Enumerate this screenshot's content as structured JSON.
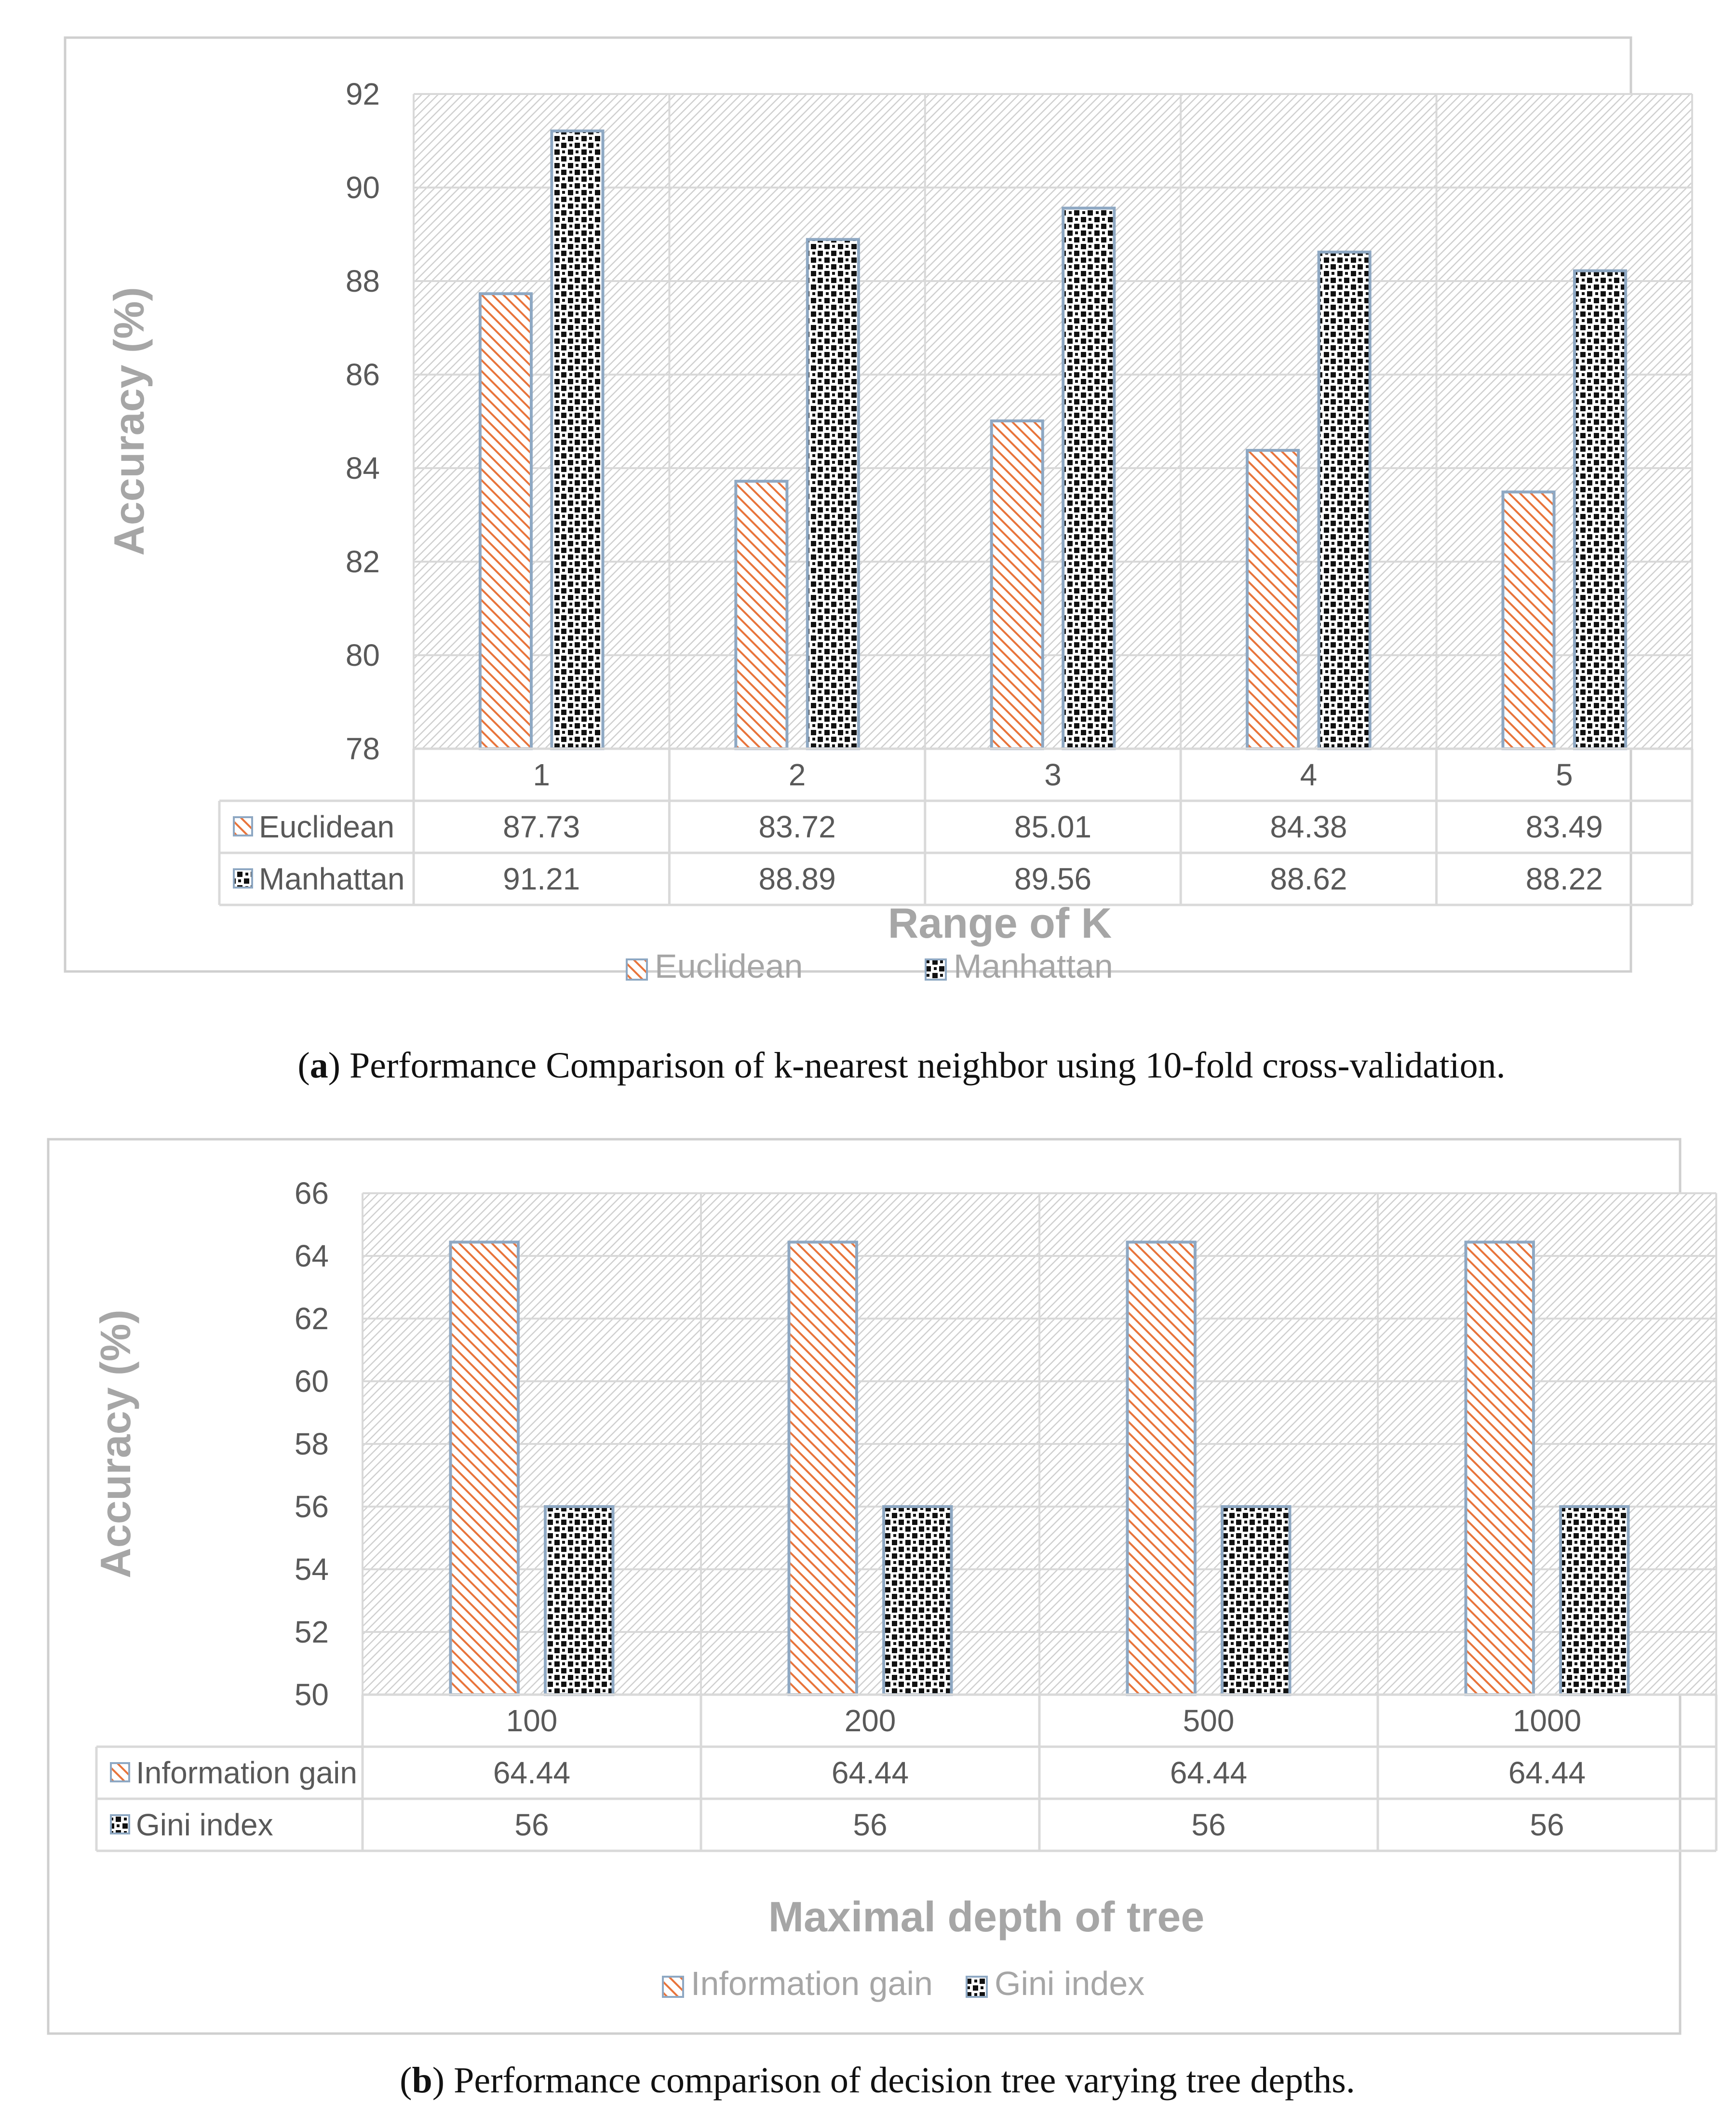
{
  "colors": {
    "euclidean_stripe": "#e8743b",
    "bar_edge": "#8ea8c3",
    "checker_dark": "#111111",
    "label_gray": "#a6a6a6",
    "text_gray": "#595959",
    "grid": "#d9d9d9",
    "frame": "#cfcfcf",
    "hatch_bg": "#cccccc"
  },
  "chart_data": [
    {
      "type": "bar",
      "caption_label": "a",
      "caption_text": "Performance Comparison of k-nearest neighbor using 10-fold cross-validation.",
      "xlabel": "Range of K",
      "ylabel": "Accuracy (%)",
      "ylim": [
        78,
        92
      ],
      "yticks": [
        "78",
        "80",
        "82",
        "84",
        "86",
        "88",
        "90",
        "92"
      ],
      "categories": [
        "1",
        "2",
        "3",
        "4",
        "5"
      ],
      "series": [
        {
          "name": "Euclidean",
          "pattern": "stripe",
          "values": [
            87.73,
            83.72,
            85.01,
            84.38,
            83.49
          ],
          "labels": [
            "87.73",
            "83.72",
            "85.01",
            "84.38",
            "83.49"
          ]
        },
        {
          "name": "Manhattan",
          "pattern": "checker",
          "values": [
            91.21,
            88.89,
            89.56,
            88.62,
            88.22
          ],
          "labels": [
            "91.21",
            "88.89",
            "89.56",
            "88.62",
            "88.22"
          ]
        }
      ],
      "legend_position": "bottom",
      "data_table": true,
      "grid": true
    },
    {
      "type": "bar",
      "caption_label": "b",
      "caption_text": "Performance comparison of decision tree varying tree depths.",
      "xlabel": "Maximal depth of tree",
      "ylabel": "Accuracy (%)",
      "ylim": [
        50,
        66
      ],
      "yticks": [
        "50",
        "52",
        "54",
        "56",
        "58",
        "60",
        "62",
        "64",
        "66"
      ],
      "categories": [
        "100",
        "200",
        "500",
        "1000"
      ],
      "series": [
        {
          "name": "Information gain",
          "pattern": "stripe",
          "values": [
            64.44,
            64.44,
            64.44,
            64.44
          ],
          "labels": [
            "64.44",
            "64.44",
            "64.44",
            "64.44"
          ]
        },
        {
          "name": "Gini index",
          "pattern": "checker",
          "values": [
            56,
            56,
            56,
            56
          ],
          "labels": [
            "56",
            "56",
            "56",
            "56"
          ]
        }
      ],
      "legend_position": "bottom",
      "data_table": true,
      "grid": true
    }
  ]
}
